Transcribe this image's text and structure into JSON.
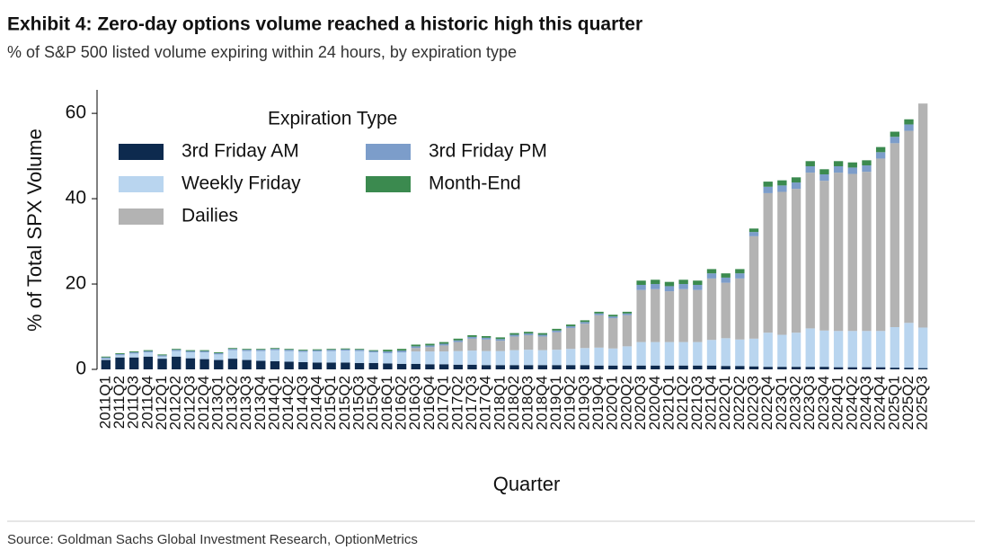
{
  "header": {
    "title": "Exhibit 4: Zero-day options volume reached a historic high this quarter",
    "subtitle": "% of S&P 500 listed volume expiring within 24 hours, by expiration type"
  },
  "footer": {
    "source": "Source: Goldman Sachs Global Investment Research, OptionMetrics"
  },
  "chart_data": {
    "type": "stacked_bar",
    "xlabel": "Quarter",
    "ylabel": "% of Total SPX Volume",
    "legend_title": "Expiration Type",
    "legend": "upper left",
    "categories": [
      "2011Q1",
      "2011Q2",
      "2011Q3",
      "2011Q4",
      "2012Q1",
      "2012Q2",
      "2012Q3",
      "2012Q4",
      "2013Q1",
      "2013Q2",
      "2013Q3",
      "2013Q4",
      "2014Q1",
      "2014Q2",
      "2014Q3",
      "2014Q4",
      "2015Q1",
      "2015Q2",
      "2015Q3",
      "2015Q4",
      "2016Q1",
      "2016Q2",
      "2016Q3",
      "2016Q4",
      "2017Q1",
      "2017Q2",
      "2017Q3",
      "2017Q4",
      "2018Q1",
      "2018Q2",
      "2018Q3",
      "2018Q4",
      "2019Q1",
      "2019Q2",
      "2019Q3",
      "2019Q4",
      "2020Q1",
      "2020Q2",
      "2020Q3",
      "2020Q4",
      "2021Q1",
      "2021Q2",
      "2021Q3",
      "2021Q4",
      "2022Q1",
      "2022Q2",
      "2022Q3",
      "2022Q4",
      "2023Q1",
      "2023Q2",
      "2023Q3",
      "2023Q4",
      "2024Q1",
      "2024Q2",
      "2024Q3",
      "2024Q4",
      "2025Q1",
      "2025Q2",
      "2025Q3"
    ],
    "series": [
      {
        "name": "3rd Friday AM",
        "color": "#0d2a4e",
        "values": [
          2.2,
          2.8,
          2.8,
          3.0,
          2.5,
          3.0,
          2.6,
          2.4,
          2.2,
          2.5,
          2.2,
          2.0,
          1.9,
          1.8,
          1.7,
          1.6,
          1.6,
          1.6,
          1.5,
          1.5,
          1.4,
          1.3,
          1.3,
          1.2,
          1.2,
          1.1,
          1.1,
          1.0,
          1.0,
          1.0,
          1.0,
          1.0,
          1.0,
          1.0,
          1.0,
          0.9,
          0.9,
          0.9,
          0.9,
          0.9,
          0.9,
          0.9,
          0.9,
          0.9,
          0.8,
          0.8,
          0.7,
          0.6,
          0.6,
          0.6,
          0.6,
          0.6,
          0.5,
          0.5,
          0.5,
          0.5,
          0.4,
          0.4,
          0.3
        ]
      },
      {
        "name": "Weekly Friday",
        "color": "#b9d5ef",
        "values": [
          0.3,
          0.5,
          0.9,
          1.0,
          0.5,
          1.3,
          1.4,
          1.6,
          1.3,
          2.0,
          2.1,
          2.3,
          2.6,
          2.5,
          2.4,
          2.6,
          2.7,
          2.8,
          2.8,
          2.5,
          2.4,
          2.7,
          2.9,
          3.0,
          3.0,
          3.2,
          3.3,
          3.3,
          3.3,
          3.5,
          3.6,
          3.5,
          3.6,
          3.8,
          4.0,
          4.2,
          4.0,
          4.5,
          5.5,
          5.5,
          5.5,
          5.5,
          5.5,
          6.0,
          6.5,
          6.2,
          6.5,
          8.0,
          7.5,
          8.0,
          9.0,
          8.5,
          8.5,
          8.5,
          8.5,
          8.5,
          9.5,
          10.5,
          9.5
        ]
      },
      {
        "name": "Dailies",
        "color": "#b3b3b3",
        "values": [
          0,
          0,
          0,
          0,
          0,
          0,
          0,
          0,
          0,
          0,
          0,
          0,
          0,
          0,
          0,
          0,
          0,
          0,
          0,
          0,
          0,
          0,
          0.8,
          1.0,
          1.4,
          2.1,
          2.8,
          2.7,
          2.4,
          3.2,
          3.4,
          3.2,
          4.1,
          4.9,
          5.7,
          7.6,
          7.1,
          7.3,
          12.2,
          12.4,
          11.9,
          12.4,
          12.2,
          14.4,
          13.0,
          14.3,
          24.0,
          32.7,
          33.5,
          33.7,
          36.5,
          35.1,
          37.1,
          36.8,
          37.3,
          40.4,
          43.1,
          45.0,
          52.5
        ]
      },
      {
        "name": "3rd Friday PM",
        "color": "#7c9dca",
        "values": [
          0.3,
          0.3,
          0.3,
          0.3,
          0.3,
          0.3,
          0.3,
          0.3,
          0.3,
          0.3,
          0.3,
          0.3,
          0.3,
          0.3,
          0.3,
          0.3,
          0.3,
          0.3,
          0.3,
          0.3,
          0.4,
          0.4,
          0.4,
          0.4,
          0.4,
          0.4,
          0.4,
          0.4,
          0.4,
          0.4,
          0.4,
          0.4,
          0.4,
          0.4,
          0.4,
          0.4,
          0.4,
          0.4,
          1.2,
          1.2,
          1.2,
          1.2,
          1.2,
          1.2,
          1.2,
          1.2,
          1.0,
          1.5,
          1.5,
          1.5,
          1.5,
          1.5,
          1.5,
          1.5,
          1.5,
          1.5,
          1.5,
          1.5,
          0
        ]
      },
      {
        "name": "Month-End",
        "color": "#3b8a4f",
        "values": [
          0.2,
          0.2,
          0.2,
          0.2,
          0.2,
          0.2,
          0.2,
          0.2,
          0.2,
          0.2,
          0.2,
          0.2,
          0.2,
          0.2,
          0.2,
          0.2,
          0.2,
          0.2,
          0.2,
          0.2,
          0.4,
          0.4,
          0.4,
          0.4,
          0.4,
          0.4,
          0.4,
          0.4,
          0.4,
          0.4,
          0.4,
          0.4,
          0.4,
          0.4,
          0.4,
          0.4,
          0.4,
          0.4,
          1.0,
          1.0,
          1.0,
          1.0,
          1.0,
          1.0,
          1.0,
          1.0,
          0.8,
          1.2,
          1.2,
          1.2,
          1.2,
          1.2,
          1.2,
          1.2,
          1.2,
          1.2,
          1.2,
          1.2,
          0
        ]
      }
    ],
    "ylim": [
      0,
      65.5
    ],
    "yticks": [
      0,
      20,
      40,
      60
    ],
    "grid": false
  }
}
